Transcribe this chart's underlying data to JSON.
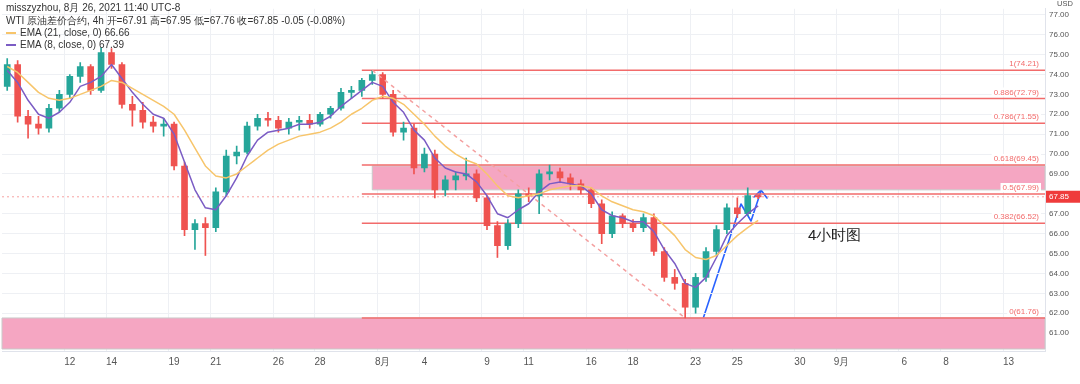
{
  "chart_data": {
    "type": "candlestick",
    "title": "misszyzhou, 8月 26, 2021 11:40 UTC-8",
    "subtitle": "WTI 原油差价合约, 4h  开=67.91 高=67.95 低=67.76 收=67.85 -0.05 (-0.08%)",
    "ylabel": "USD",
    "categories": [
      null,
      null,
      null,
      null,
      null,
      null,
      "12",
      null,
      null,
      null,
      "14",
      null,
      null,
      null,
      null,
      null,
      "19",
      null,
      null,
      null,
      "21",
      null,
      null,
      null,
      null,
      null,
      "26",
      null,
      null,
      null,
      "28",
      null,
      null,
      null,
      null,
      null,
      "8月",
      null,
      null,
      null,
      "4",
      null,
      null,
      null,
      null,
      null,
      "9",
      null,
      null,
      null,
      "11",
      null,
      null,
      null,
      null,
      null,
      "16",
      null,
      null,
      null,
      "18",
      null,
      null,
      null,
      null,
      null,
      "23",
      null,
      null,
      null,
      "25",
      null,
      null,
      null,
      null,
      null,
      "30",
      null,
      null,
      null,
      "9月",
      null,
      null,
      null,
      null,
      null,
      "6",
      null,
      null,
      null,
      "8",
      null,
      null,
      null,
      null,
      null,
      "13",
      null,
      null,
      null
    ],
    "series": [
      {
        "ohlc": [
          [
            73.4,
            74.8,
            73.2,
            74.5
          ],
          [
            74.5,
            74.7,
            71.6,
            71.9
          ],
          [
            71.9,
            72.2,
            70.8,
            71.5
          ],
          [
            71.5,
            71.9,
            71.0,
            71.3
          ],
          [
            71.3,
            72.5,
            71.1,
            72.3
          ],
          [
            72.3,
            73.2,
            72.1,
            73.0
          ],
          [
            73.0,
            74.0,
            72.8,
            73.9
          ],
          [
            73.9,
            74.6,
            73.6,
            74.4
          ],
          [
            74.4,
            74.5,
            73.0,
            73.2
          ],
          [
            73.2,
            75.35,
            73.1,
            75.1
          ],
          [
            75.1,
            75.3,
            74.3,
            74.5
          ],
          [
            74.5,
            74.6,
            72.3,
            72.5
          ],
          [
            72.5,
            72.9,
            71.4,
            72.2
          ],
          [
            72.2,
            72.6,
            71.3,
            71.6
          ],
          [
            71.6,
            71.9,
            71.1,
            71.4
          ],
          [
            71.4,
            71.8,
            70.9,
            71.5
          ],
          [
            71.5,
            71.6,
            69.2,
            69.4
          ],
          [
            69.4,
            69.6,
            65.9,
            66.2
          ],
          [
            66.2,
            66.7,
            65.2,
            66.5
          ],
          [
            66.5,
            66.8,
            64.9,
            66.3
          ],
          [
            66.3,
            68.3,
            66.1,
            68.1
          ],
          [
            68.1,
            70.2,
            67.9,
            69.9
          ],
          [
            69.9,
            70.4,
            69.5,
            70.1
          ],
          [
            70.1,
            71.6,
            70.0,
            71.4
          ],
          [
            71.4,
            72.0,
            71.2,
            71.8
          ],
          [
            71.8,
            72.1,
            71.4,
            71.7
          ],
          [
            71.7,
            71.9,
            71.1,
            71.3
          ],
          [
            71.3,
            71.8,
            71.0,
            71.6
          ],
          [
            71.6,
            71.9,
            71.2,
            71.7
          ],
          [
            71.7,
            72.0,
            71.3,
            71.5
          ],
          [
            71.5,
            72.1,
            71.4,
            72.0
          ],
          [
            72.0,
            72.4,
            71.8,
            72.3
          ],
          [
            72.3,
            73.3,
            72.2,
            73.1
          ],
          [
            73.1,
            73.4,
            72.8,
            73.2
          ],
          [
            73.2,
            73.8,
            72.9,
            73.7
          ],
          [
            73.7,
            74.21,
            73.5,
            74.0
          ],
          [
            74.0,
            74.1,
            72.8,
            73.0
          ],
          [
            73.0,
            73.2,
            70.9,
            71.1
          ],
          [
            71.1,
            71.6,
            70.7,
            71.3
          ],
          [
            71.3,
            71.5,
            69.0,
            69.3
          ],
          [
            69.3,
            70.3,
            69.1,
            70.0
          ],
          [
            70.0,
            70.2,
            67.8,
            68.2
          ],
          [
            68.2,
            68.9,
            67.9,
            68.7
          ],
          [
            68.7,
            69.1,
            68.2,
            68.9
          ],
          [
            68.9,
            69.8,
            68.7,
            69.0
          ],
          [
            69.0,
            69.2,
            67.6,
            67.8
          ],
          [
            67.8,
            67.9,
            66.2,
            66.4
          ],
          [
            66.4,
            66.6,
            64.8,
            65.4
          ],
          [
            65.4,
            66.7,
            65.2,
            66.5
          ],
          [
            66.5,
            68.2,
            66.3,
            68.0
          ],
          [
            68.0,
            68.3,
            67.6,
            67.9
          ],
          [
            67.9,
            69.2,
            67.0,
            69.0
          ],
          [
            69.0,
            69.45,
            68.7,
            69.1
          ],
          [
            69.1,
            69.3,
            68.6,
            68.8
          ],
          [
            68.8,
            69.0,
            68.2,
            68.5
          ],
          [
            68.5,
            68.7,
            68.0,
            68.2
          ],
          [
            68.2,
            68.3,
            67.3,
            67.5
          ],
          [
            67.5,
            67.7,
            65.5,
            66.0
          ],
          [
            66.0,
            67.1,
            65.8,
            66.9
          ],
          [
            66.9,
            67.0,
            66.3,
            66.5
          ],
          [
            66.5,
            66.7,
            66.1,
            66.3
          ],
          [
            66.3,
            67.0,
            66.1,
            66.8
          ],
          [
            66.8,
            67.0,
            64.9,
            65.1
          ],
          [
            65.1,
            65.3,
            63.6,
            63.8
          ],
          [
            63.8,
            64.2,
            63.2,
            63.5
          ],
          [
            63.5,
            63.7,
            61.76,
            62.3
          ],
          [
            62.3,
            64.0,
            62.0,
            63.8
          ],
          [
            63.8,
            65.3,
            63.6,
            65.1
          ],
          [
            65.1,
            66.4,
            64.9,
            66.2
          ],
          [
            66.2,
            67.5,
            66.0,
            67.3
          ],
          [
            67.3,
            67.8,
            66.8,
            67.0
          ],
          [
            67.0,
            68.3,
            66.9,
            67.91
          ],
          [
            67.91,
            67.95,
            67.76,
            67.85
          ],
          null,
          null,
          null,
          null,
          null,
          null,
          null,
          null,
          null,
          null,
          null,
          null,
          null,
          null,
          null,
          null,
          null,
          null,
          null,
          null,
          null,
          null,
          null,
          null,
          null,
          null,
          null
        ],
        "colors": [
          "#26a69a",
          "#ef5350",
          "#ef5350",
          "#ef5350",
          "#26a69a",
          "#26a69a",
          "#26a69a",
          "#26a69a",
          "#ef5350",
          "#26a69a",
          "#ef5350",
          "#ef5350",
          "#ef5350",
          "#ef5350",
          "#ef5350",
          "#26a69a",
          "#ef5350",
          "#ef5350",
          "#26a69a",
          "#ef5350",
          "#26a69a",
          "#26a69a",
          "#26a69a",
          "#26a69a",
          "#26a69a",
          "#ef5350",
          "#ef5350",
          "#26a69a",
          "#26a69a",
          "#ef5350",
          "#26a69a",
          "#26a69a",
          "#26a69a",
          "#26a69a",
          "#26a69a",
          "#26a69a",
          "#ef5350",
          "#ef5350",
          "#26a69a",
          "#ef5350",
          "#26a69a",
          "#ef5350",
          "#26a69a",
          "#26a69a",
          "#26a69a",
          "#ef5350",
          "#ef5350",
          "#ef5350",
          "#26a69a",
          "#26a69a",
          "#ef5350",
          "#26a69a",
          "#26a69a",
          "#ef5350",
          "#ef5350",
          "#ef5350",
          "#ef5350",
          "#ef5350",
          "#26a69a",
          "#ef5350",
          "#ef5350",
          "#26a69a",
          "#ef5350",
          "#ef5350",
          "#ef5350",
          "#ef5350",
          "#26a69a",
          "#26a69a",
          "#26a69a",
          "#26a69a",
          "#ef5350",
          "#26a69a",
          "#ef5350",
          null,
          null,
          null,
          null,
          null,
          null,
          null,
          null,
          null,
          null,
          null,
          null,
          null,
          null,
          null,
          null,
          null,
          null,
          null,
          null,
          null,
          null,
          null,
          null,
          null,
          null,
          null
        ]
      },
      {
        "type": "line",
        "name": "EMA (21, close, 0) 66.66",
        "color": "#f7c56b",
        "values": [
          74.4,
          74.1,
          73.6,
          73.1,
          72.8,
          72.7,
          72.8,
          73.0,
          73.2,
          73.4,
          73.7,
          73.6,
          73.3,
          73.0,
          72.7,
          72.4,
          72.0,
          71.2,
          70.3,
          69.4,
          68.9,
          68.8,
          69.0,
          69.4,
          69.8,
          70.2,
          70.5,
          70.7,
          70.9,
          71.0,
          71.1,
          71.3,
          71.6,
          72.0,
          72.3,
          72.7,
          72.9,
          72.8,
          72.5,
          72.0,
          71.5,
          70.9,
          70.4,
          70.0,
          69.7,
          69.5,
          69.0,
          68.4,
          67.9,
          67.8,
          67.9,
          68.0,
          68.2,
          68.3,
          68.4,
          68.4,
          68.3,
          67.9,
          67.6,
          67.4,
          67.2,
          67.1,
          66.9,
          66.4,
          65.9,
          65.2,
          64.8,
          64.7,
          64.9,
          65.4,
          65.9,
          66.3,
          66.66,
          null,
          null,
          null,
          null,
          null,
          null,
          null,
          null,
          null,
          null,
          null,
          null,
          null,
          null,
          null,
          null,
          null,
          null,
          null,
          null,
          null,
          null,
          null,
          null,
          null,
          null,
          null
        ]
      },
      {
        "type": "line",
        "name": "EMA (8, close, 0) 67.39",
        "color": "#7b5cc4",
        "values": [
          74.2,
          73.6,
          72.7,
          72.0,
          71.8,
          72.1,
          72.6,
          73.4,
          73.6,
          73.9,
          74.5,
          73.8,
          73.1,
          72.5,
          72.0,
          71.8,
          71.0,
          69.6,
          68.2,
          67.3,
          67.2,
          67.9,
          68.8,
          69.9,
          70.7,
          71.1,
          71.2,
          71.3,
          71.5,
          71.5,
          71.6,
          71.9,
          72.4,
          72.8,
          73.2,
          73.6,
          73.4,
          72.6,
          72.1,
          71.2,
          70.7,
          69.8,
          69.3,
          69.1,
          69.0,
          68.6,
          67.9,
          67.0,
          66.8,
          67.2,
          67.5,
          68.1,
          68.5,
          68.6,
          68.5,
          68.4,
          68.0,
          67.2,
          66.9,
          66.8,
          66.6,
          66.6,
          66.1,
          65.2,
          64.5,
          63.5,
          63.3,
          63.8,
          64.8,
          65.9,
          66.5,
          67.0,
          67.39,
          null,
          null,
          null,
          null,
          null,
          null,
          null,
          null,
          null,
          null,
          null,
          null,
          null,
          null,
          null,
          null,
          null,
          null,
          null,
          null,
          null,
          null,
          null,
          null,
          null,
          null,
          null
        ]
      },
      {
        "type": "line",
        "color": "#f4a0a0",
        "line_style": "dashed",
        "values": [
          null,
          null,
          null,
          null,
          null,
          null,
          null,
          null,
          null,
          null,
          null,
          null,
          null,
          null,
          null,
          null,
          null,
          null,
          null,
          null,
          null,
          null,
          null,
          null,
          null,
          null,
          null,
          null,
          null,
          null,
          null,
          null,
          null,
          null,
          null,
          74.21,
          null,
          null,
          null,
          null,
          null,
          null,
          null,
          null,
          null,
          null,
          null,
          null,
          null,
          null,
          null,
          null,
          null,
          null,
          null,
          null,
          null,
          null,
          null,
          null,
          null,
          null,
          null,
          null,
          null,
          61.76,
          null,
          null,
          null,
          null,
          null,
          null,
          null,
          null,
          null,
          null,
          null,
          null,
          null,
          null,
          null,
          null,
          null,
          null,
          null,
          null,
          null,
          null,
          null,
          null,
          null,
          null,
          null,
          null,
          null,
          null,
          null,
          null,
          null,
          null
        ]
      }
    ],
    "ylim": [
      60.1,
      77.3
    ],
    "yticks": [
      {
        "value": 61,
        "label": "61.00"
      },
      {
        "value": 62,
        "label": "62.00"
      },
      {
        "value": 63,
        "label": "63.00"
      },
      {
        "value": 64,
        "label": "64.00"
      },
      {
        "value": 65,
        "label": "65.00"
      },
      {
        "value": 66,
        "label": "66.00"
      },
      {
        "value": 67,
        "label": "67.00"
      },
      {
        "value": 69,
        "label": "69.00"
      },
      {
        "value": 70,
        "label": "70.00"
      },
      {
        "value": 71,
        "label": "71.00"
      },
      {
        "value": 72,
        "label": "72.00"
      },
      {
        "value": 73,
        "label": "73.00"
      },
      {
        "value": 74,
        "label": "74.00"
      },
      {
        "value": 75,
        "label": "75.00"
      },
      {
        "value": 76,
        "label": "76.00"
      },
      {
        "value": 77,
        "label": "77.00"
      }
    ],
    "ref_lines": [
      {
        "axis": "y",
        "value": 74.21,
        "label": "1(74.21)",
        "color": "#f26b6b"
      },
      {
        "axis": "y",
        "value": 72.79,
        "label": "0.886(72.79)",
        "color": "#f26b6b"
      },
      {
        "axis": "y",
        "value": 71.55,
        "label": "0.786(71.55)",
        "color": "#f26b6b"
      },
      {
        "axis": "y",
        "value": 69.45,
        "label": "0.618(69.45)",
        "color": "#f26b6b"
      },
      {
        "axis": "y",
        "value": 67.99,
        "label": "0.5(67.99)",
        "color": "#f26b6b"
      },
      {
        "axis": "y",
        "value": 66.52,
        "label": "0.382(66.52)",
        "color": "#f26b6b"
      },
      {
        "axis": "y",
        "value": 61.76,
        "label": "0(61.76)",
        "color": "#f26b6b"
      },
      {
        "axis": "y",
        "value": 67.85,
        "label": "67.85",
        "color": "#f7a1a1",
        "line_style": "dotted"
      }
    ],
    "bands": [
      {
        "axis": "y",
        "from": 68.2,
        "to": 69.4,
        "color": "#f5a6c2"
      },
      {
        "axis": "y",
        "from": 60.2,
        "to": 61.76,
        "color": "#f5a6c2"
      }
    ],
    "annotations": [
      "4小时图"
    ],
    "grid": true,
    "legend": "top left"
  }
}
